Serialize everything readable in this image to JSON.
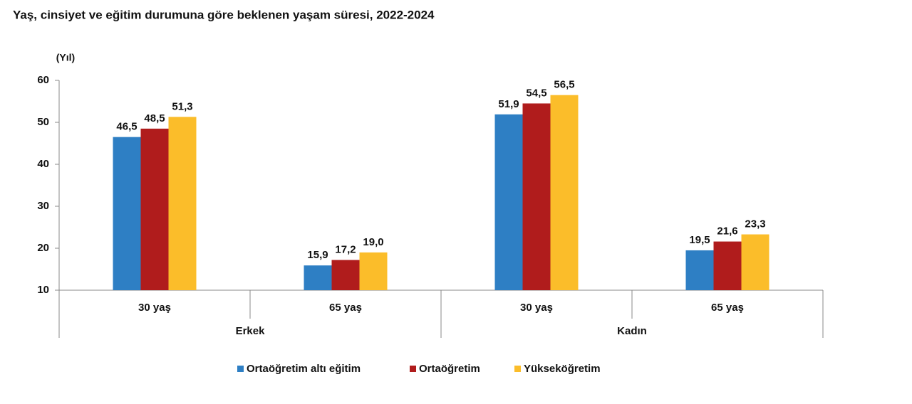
{
  "chart_data": {
    "type": "bar",
    "title": "Yaş, cinsiyet ve eğitim durumuna göre beklenen yaşam süresi, 2022-2024",
    "y_label": "(Yıl)",
    "categories": [
      "30 yaş",
      "65 yaş",
      "30 yaş",
      "65 yaş"
    ],
    "groups": [
      "Erkek",
      "Kadın"
    ],
    "series": [
      {
        "name": "Ortaöğretim altı eğitim",
        "color": "#2e7fc4",
        "values": [
          46.5,
          15.9,
          51.9,
          19.5
        ],
        "value_labels": [
          "46,5",
          "15,9",
          "51,9",
          "19,5"
        ]
      },
      {
        "name": "Ortaöğretim",
        "color": "#b01c1c",
        "values": [
          48.5,
          17.2,
          54.5,
          21.6
        ],
        "value_labels": [
          "48,5",
          "17,2",
          "54,5",
          "21,6"
        ]
      },
      {
        "name": "Yükseköğretim",
        "color": "#fbbd2a",
        "values": [
          51.3,
          19.0,
          56.5,
          23.3
        ],
        "value_labels": [
          "51,3",
          "19,0",
          "56,5",
          "23,3"
        ]
      }
    ],
    "ylim": [
      10,
      60
    ],
    "yticks": [
      10,
      20,
      30,
      40,
      50,
      60
    ],
    "grid": false,
    "legend": "bottom"
  }
}
